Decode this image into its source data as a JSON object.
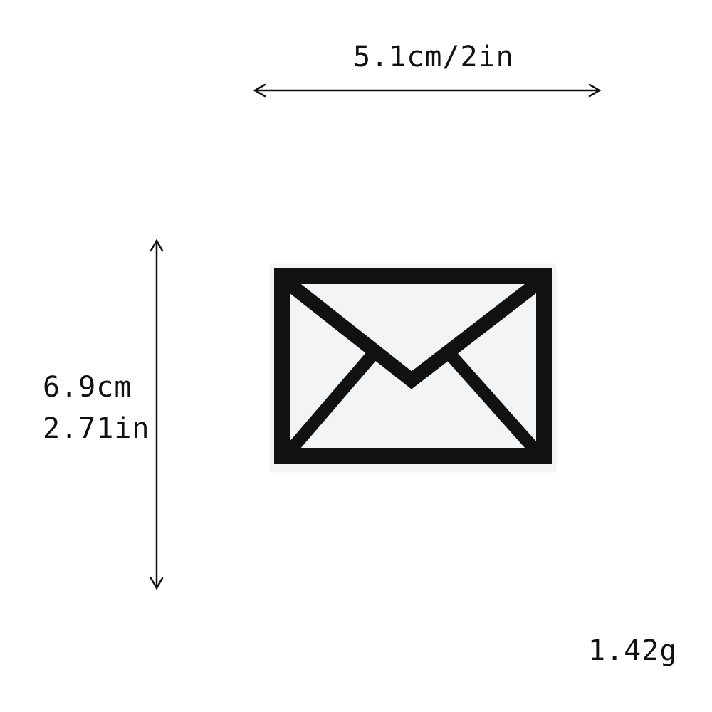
{
  "dimensions": {
    "width_label": "5.1cm/2in",
    "height_cm_label": "6.9cm",
    "height_in_label": "2.71in"
  },
  "weight_label": "1.42g",
  "product": {
    "subject": "envelope-icon",
    "patch_color": "#f3f4f6",
    "stitch_color": "#111111"
  },
  "colors": {
    "background": "#ffffff",
    "arrow": "#111111"
  }
}
